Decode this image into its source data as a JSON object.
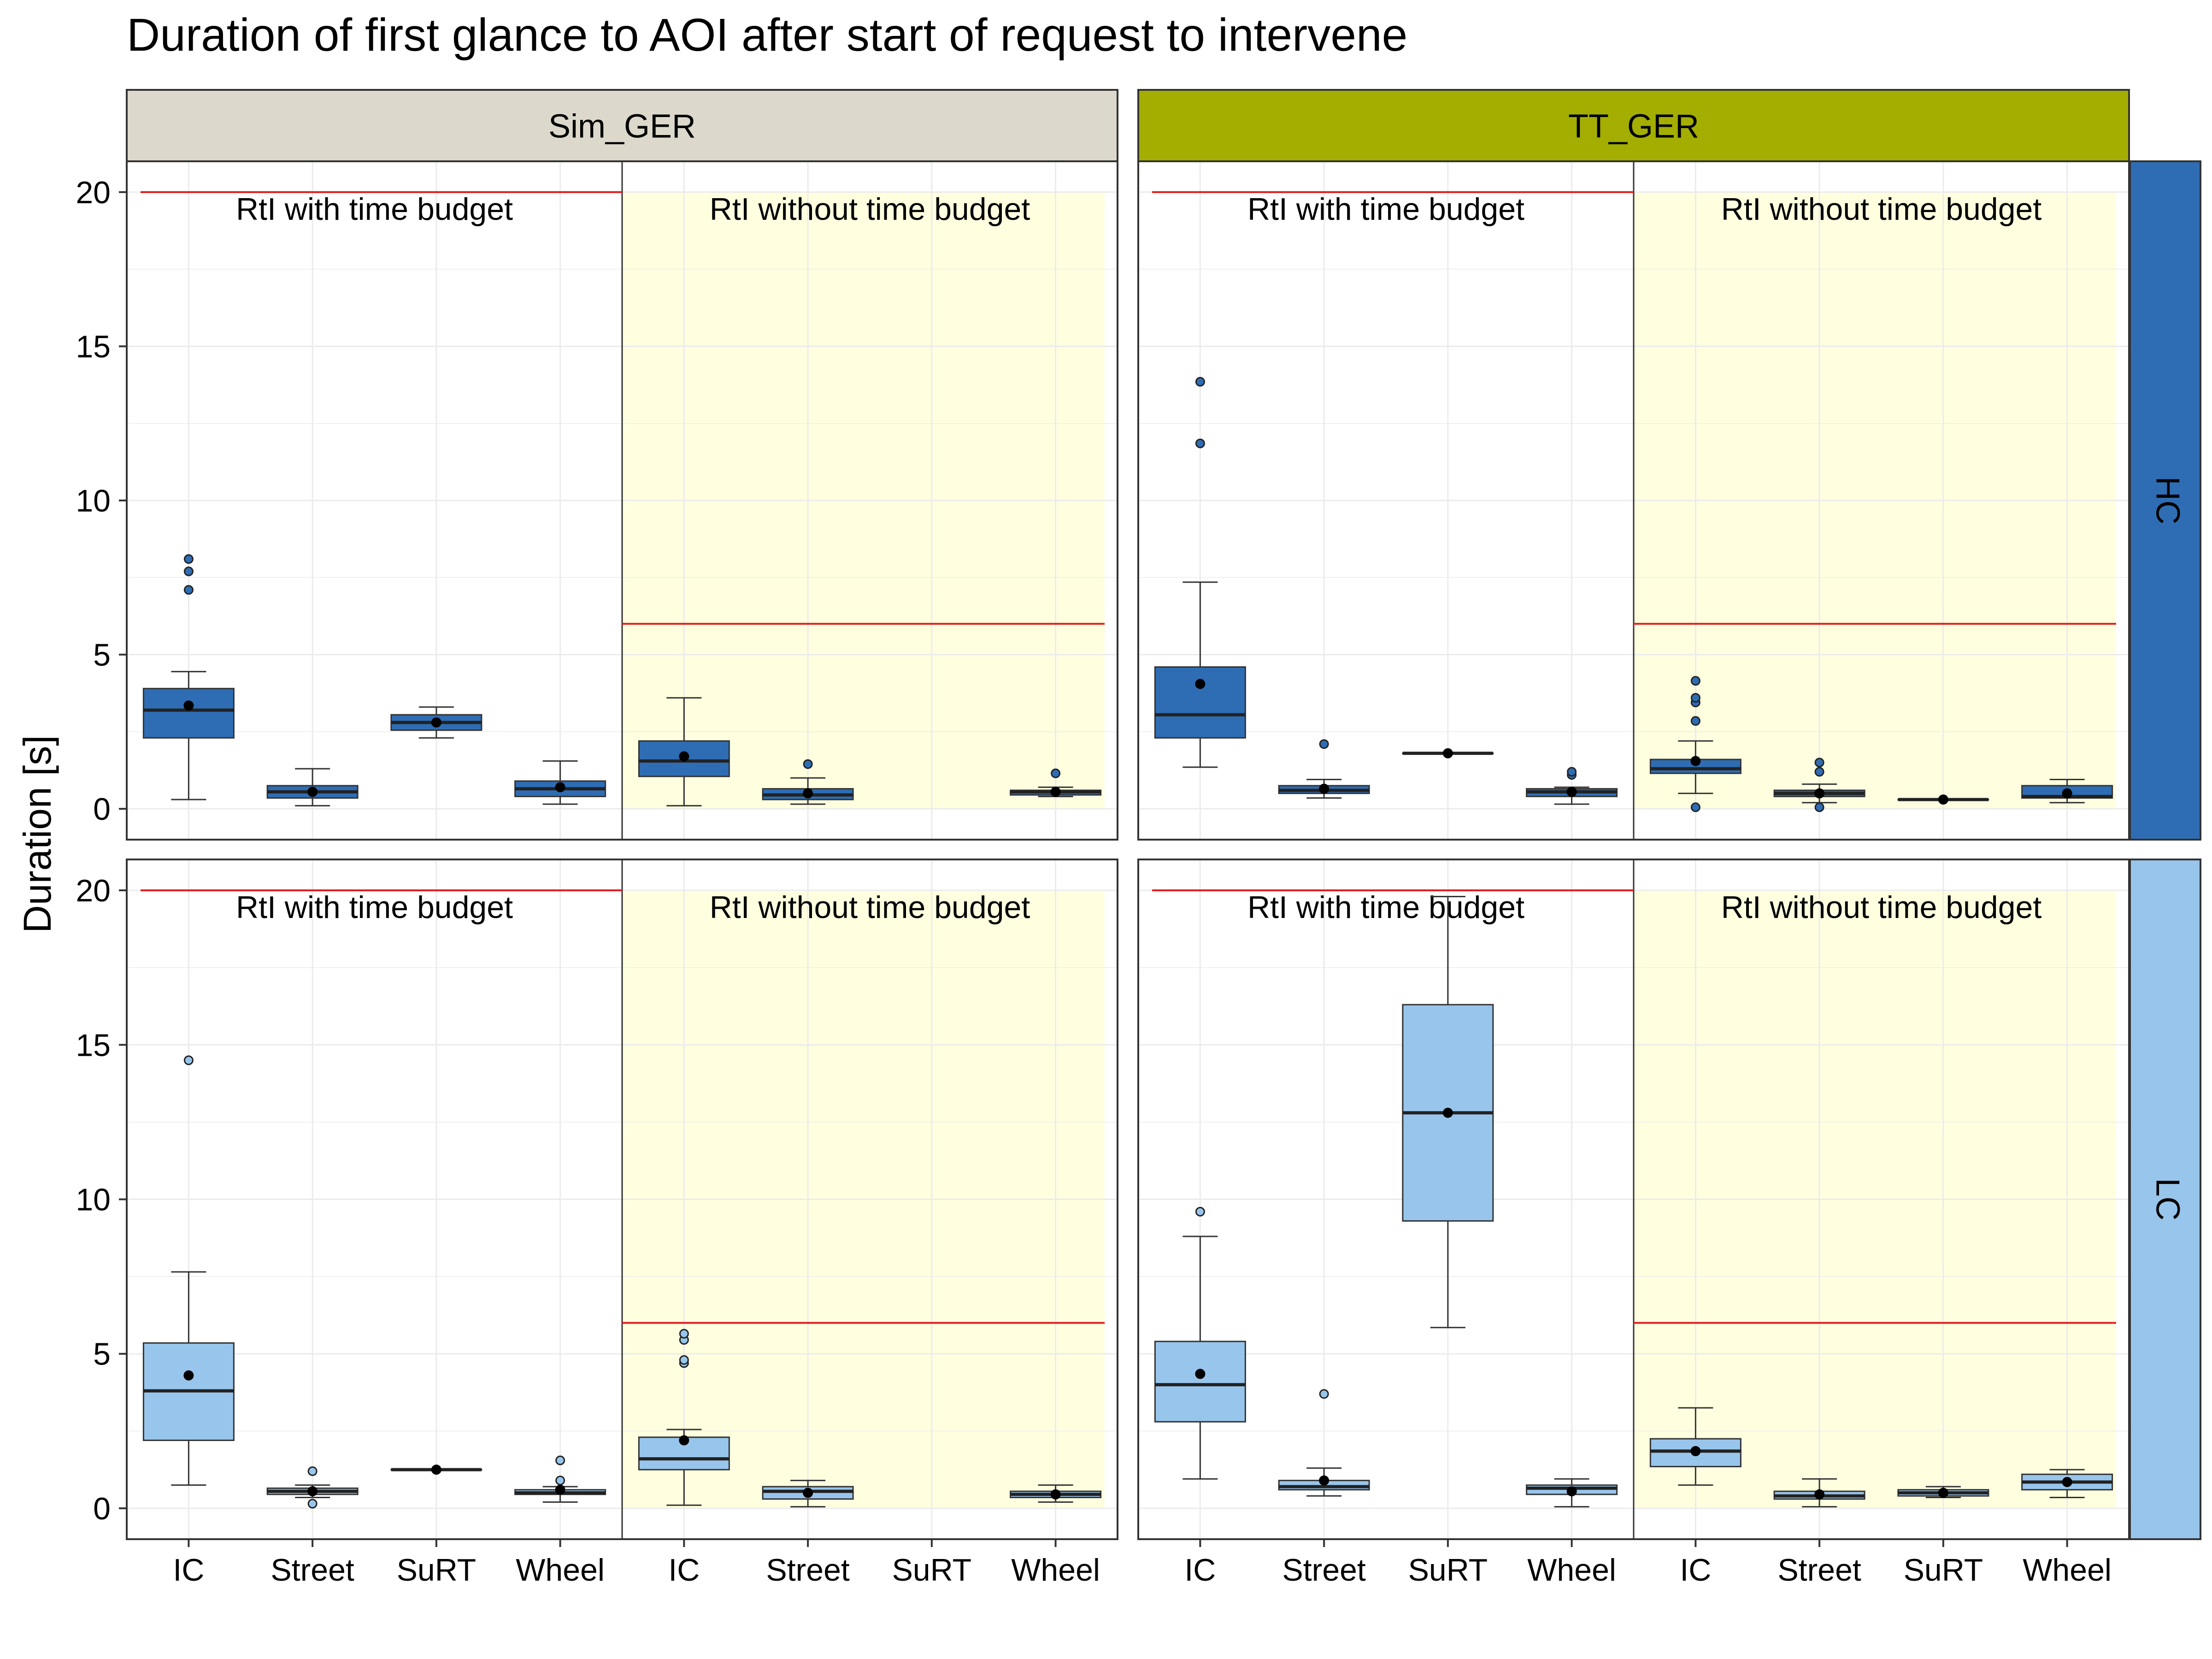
{
  "title": "Duration of first glance to AOI after start of request to intervene",
  "colors": {
    "HC": "#2e6db4",
    "LC": "#98c5eb",
    "Sim_GER": "#dcd9cc",
    "TT_GER": "#a3ae00",
    "shade": "#ffffe0",
    "line": "#e41a1c"
  },
  "chart_data": {
    "type": "box",
    "title": "Duration of first glance to AOI after start of request to intervene",
    "ylabel": "Duration [s]",
    "xlabel": "",
    "ylim": [
      -1,
      21
    ],
    "yticks": [
      0,
      5,
      10,
      15,
      20
    ],
    "grid": true,
    "columns": [
      {
        "label": "Sim_GER",
        "color": "#dcd9cc"
      },
      {
        "label": "TT_GER",
        "color": "#a3ae00"
      }
    ],
    "rows": [
      {
        "label": "HC",
        "color": "#2e6db4"
      },
      {
        "label": "LC",
        "color": "#98c5eb"
      }
    ],
    "conditions": [
      {
        "label": "RtI with time budget",
        "ref_line": 20,
        "shaded": false
      },
      {
        "label": "RtI without time budget",
        "ref_line": 6,
        "shaded": true
      }
    ],
    "categories": [
      "IC",
      "Street",
      "SuRT",
      "Wheel"
    ],
    "panels": [
      {
        "column": "Sim_GER",
        "row": "HC",
        "groups": [
          [
            {
              "min": 0.3,
              "q1": 2.3,
              "median": 3.2,
              "q3": 3.9,
              "max": 4.45,
              "mean": 3.35,
              "outliers": [
                7.1,
                7.7,
                8.1
              ]
            },
            {
              "min": 0.1,
              "q1": 0.35,
              "median": 0.55,
              "q3": 0.75,
              "max": 1.3,
              "mean": 0.55,
              "outliers": []
            },
            {
              "min": 2.3,
              "q1": 2.55,
              "median": 2.8,
              "q3": 3.05,
              "max": 3.3,
              "mean": 2.8,
              "outliers": []
            },
            {
              "min": 0.15,
              "q1": 0.4,
              "median": 0.65,
              "q3": 0.9,
              "max": 1.55,
              "mean": 0.7,
              "outliers": []
            }
          ],
          [
            {
              "min": 0.1,
              "q1": 1.05,
              "median": 1.55,
              "q3": 2.2,
              "max": 3.6,
              "mean": 1.7,
              "outliers": []
            },
            {
              "min": 0.15,
              "q1": 0.3,
              "median": 0.45,
              "q3": 0.65,
              "max": 1.0,
              "mean": 0.5,
              "outliers": [
                1.45
              ]
            },
            null,
            {
              "min": 0.4,
              "q1": 0.45,
              "median": 0.55,
              "q3": 0.6,
              "max": 0.7,
              "mean": 0.55,
              "outliers": [
                1.15
              ]
            }
          ]
        ]
      },
      {
        "column": "TT_GER",
        "row": "HC",
        "groups": [
          [
            {
              "min": 1.35,
              "q1": 2.3,
              "median": 3.05,
              "q3": 4.6,
              "max": 7.35,
              "mean": 4.05,
              "outliers": [
                11.85,
                13.85
              ]
            },
            {
              "min": 0.35,
              "q1": 0.5,
              "median": 0.6,
              "q3": 0.75,
              "max": 0.95,
              "mean": 0.65,
              "outliers": [
                2.1
              ]
            },
            {
              "min": 1.8,
              "q1": 1.8,
              "median": 1.8,
              "q3": 1.8,
              "max": 1.8,
              "mean": 1.8,
              "outliers": []
            },
            {
              "min": 0.15,
              "q1": 0.4,
              "median": 0.55,
              "q3": 0.65,
              "max": 0.7,
              "mean": 0.55,
              "outliers": [
                1.1,
                1.2
              ]
            }
          ],
          [
            {
              "min": 0.5,
              "q1": 1.15,
              "median": 1.3,
              "q3": 1.6,
              "max": 2.2,
              "mean": 1.55,
              "outliers": [
                0.05,
                2.85,
                3.45,
                3.6,
                4.15
              ]
            },
            {
              "min": 0.2,
              "q1": 0.4,
              "median": 0.5,
              "q3": 0.6,
              "max": 0.8,
              "mean": 0.5,
              "outliers": [
                0.05,
                1.2,
                1.5
              ]
            },
            {
              "min": 0.3,
              "q1": 0.3,
              "median": 0.3,
              "q3": 0.3,
              "max": 0.3,
              "mean": 0.3,
              "outliers": []
            },
            {
              "min": 0.2,
              "q1": 0.35,
              "median": 0.4,
              "q3": 0.75,
              "max": 0.95,
              "mean": 0.5,
              "outliers": []
            }
          ]
        ]
      },
      {
        "column": "Sim_GER",
        "row": "LC",
        "groups": [
          [
            {
              "min": 0.75,
              "q1": 2.2,
              "median": 3.8,
              "q3": 5.35,
              "max": 7.65,
              "mean": 4.3,
              "outliers": [
                14.5
              ]
            },
            {
              "min": 0.35,
              "q1": 0.45,
              "median": 0.55,
              "q3": 0.65,
              "max": 0.75,
              "mean": 0.55,
              "outliers": [
                0.15,
                1.2
              ]
            },
            {
              "min": 1.25,
              "q1": 1.25,
              "median": 1.25,
              "q3": 1.25,
              "max": 1.25,
              "mean": 1.25,
              "outliers": []
            },
            {
              "min": 0.2,
              "q1": 0.45,
              "median": 0.5,
              "q3": 0.6,
              "max": 0.7,
              "mean": 0.6,
              "outliers": [
                0.9,
                1.55
              ]
            }
          ],
          [
            {
              "min": 0.1,
              "q1": 1.25,
              "median": 1.6,
              "q3": 2.3,
              "max": 2.55,
              "mean": 2.2,
              "outliers": [
                4.7,
                4.8,
                5.45,
                5.65
              ]
            },
            {
              "min": 0.05,
              "q1": 0.3,
              "median": 0.55,
              "q3": 0.7,
              "max": 0.9,
              "mean": 0.5,
              "outliers": []
            },
            null,
            {
              "min": 0.2,
              "q1": 0.35,
              "median": 0.45,
              "q3": 0.55,
              "max": 0.75,
              "mean": 0.45,
              "outliers": []
            }
          ]
        ]
      },
      {
        "column": "TT_GER",
        "row": "LC",
        "groups": [
          [
            {
              "min": 0.95,
              "q1": 2.8,
              "median": 4.0,
              "q3": 5.4,
              "max": 8.8,
              "mean": 4.35,
              "outliers": [
                9.6
              ]
            },
            {
              "min": 0.4,
              "q1": 0.6,
              "median": 0.7,
              "q3": 0.9,
              "max": 1.3,
              "mean": 0.9,
              "outliers": [
                3.7
              ]
            },
            {
              "min": 5.85,
              "q1": 9.3,
              "median": 12.8,
              "q3": 16.3,
              "max": 19.8,
              "mean": 12.8,
              "outliers": []
            },
            {
              "min": 0.05,
              "q1": 0.45,
              "median": 0.65,
              "q3": 0.75,
              "max": 0.95,
              "mean": 0.55,
              "outliers": []
            }
          ],
          [
            {
              "min": 0.75,
              "q1": 1.35,
              "median": 1.85,
              "q3": 2.25,
              "max": 3.25,
              "mean": 1.85,
              "outliers": []
            },
            {
              "min": 0.05,
              "q1": 0.3,
              "median": 0.4,
              "q3": 0.55,
              "max": 0.95,
              "mean": 0.45,
              "outliers": []
            },
            {
              "min": 0.35,
              "q1": 0.4,
              "median": 0.5,
              "q3": 0.6,
              "max": 0.7,
              "mean": 0.5,
              "outliers": []
            },
            {
              "min": 0.35,
              "q1": 0.6,
              "median": 0.85,
              "q3": 1.1,
              "max": 1.25,
              "mean": 0.85,
              "outliers": []
            }
          ]
        ]
      }
    ]
  }
}
